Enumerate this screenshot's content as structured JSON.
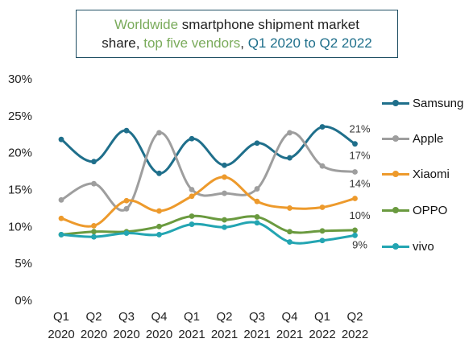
{
  "title": {
    "parts": [
      {
        "text": "Worldwide",
        "color": "#7aab5b"
      },
      {
        "text": " smartphone shipment market",
        "color": "#222222"
      },
      {
        "text": "share, ",
        "color": "#222222"
      },
      {
        "text": "top five vendors",
        "color": "#7aab5b"
      },
      {
        "text": ", ",
        "color": "#222222"
      },
      {
        "text": "Q1 2020 to Q2 2022",
        "color": "#1f6f8b"
      }
    ]
  },
  "chart_data": {
    "type": "line",
    "title": "Worldwide smartphone shipment market share, top five vendors, Q1 2020 to Q2 2022",
    "xlabel": "",
    "ylabel": "",
    "categories": [
      [
        "Q1",
        "2020"
      ],
      [
        "Q2",
        "2020"
      ],
      [
        "Q3",
        "2020"
      ],
      [
        "Q4",
        "2020"
      ],
      [
        "Q1",
        "2021"
      ],
      [
        "Q2",
        "2021"
      ],
      [
        "Q3",
        "2021"
      ],
      [
        "Q4",
        "2021"
      ],
      [
        "Q1",
        "2022"
      ],
      [
        "Q2",
        "2022"
      ]
    ],
    "ylim": [
      0,
      30
    ],
    "yticks": [
      "0%",
      "5%",
      "10%",
      "15%",
      "20%",
      "25%",
      "30%"
    ],
    "grid": false,
    "legend_position": "right",
    "series": [
      {
        "name": "Samsung",
        "color": "#1f6f8b",
        "values": [
          21.8,
          18.8,
          23.0,
          17.2,
          21.9,
          18.3,
          21.3,
          19.3,
          23.5,
          21.2
        ],
        "end_label": "21%"
      },
      {
        "name": "Apple",
        "color": "#9e9e9e",
        "values": [
          13.6,
          15.8,
          12.4,
          22.7,
          15.0,
          14.5,
          15.1,
          22.7,
          18.2,
          17.4
        ],
        "end_label": "17%"
      },
      {
        "name": "Xiaomi",
        "color": "#ed9a2c",
        "values": [
          11.1,
          10.1,
          13.5,
          12.1,
          14.1,
          16.7,
          13.4,
          12.5,
          12.6,
          13.8
        ],
        "end_label": "14%"
      },
      {
        "name": "OPPO",
        "color": "#6a9a3f",
        "values": [
          8.9,
          9.3,
          9.3,
          10.0,
          11.4,
          10.9,
          11.3,
          9.3,
          9.4,
          9.5
        ],
        "end_label": "10%"
      },
      {
        "name": "vivo",
        "color": "#23a5b2",
        "values": [
          8.9,
          8.6,
          9.1,
          8.9,
          10.3,
          9.9,
          10.5,
          7.9,
          8.1,
          8.8
        ],
        "end_label": "9%"
      }
    ]
  }
}
